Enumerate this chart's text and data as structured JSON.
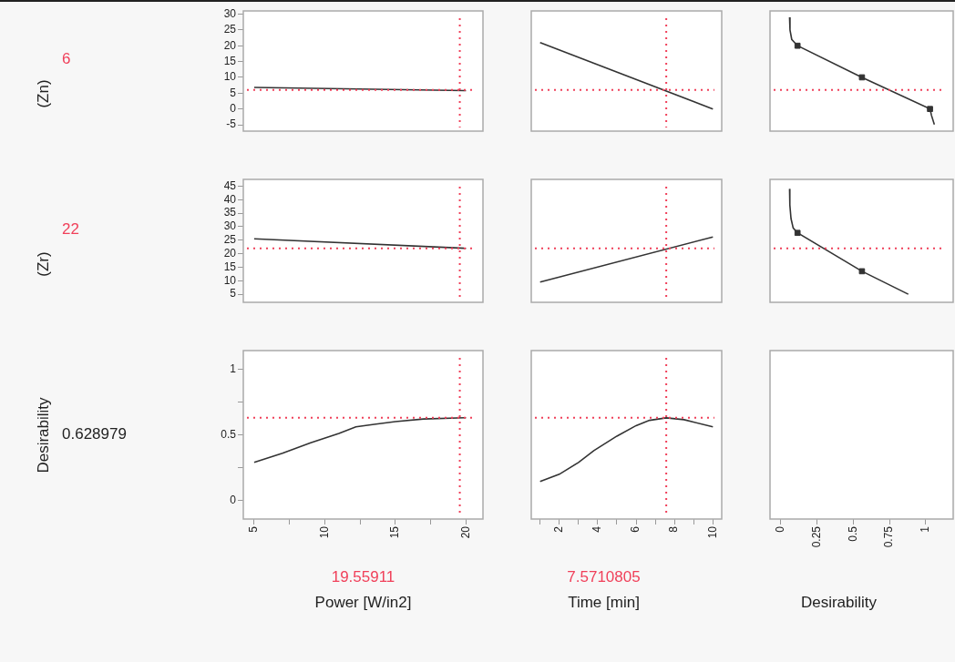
{
  "chart_data": [
    {
      "type": "line",
      "ylabel": "(Zn)",
      "tick_labels": "y",
      "grid": false,
      "marker": "none",
      "xlim": [
        4.23,
        21.2
      ],
      "ylim": [
        -7,
        31
      ],
      "yticks": [
        -5,
        0,
        5,
        10,
        15,
        20,
        25,
        30
      ],
      "ref_lines": [
        {
          "axis": "y",
          "value": 6,
          "label": "6",
          "color": "#f0405a",
          "line_style": "dotted"
        },
        {
          "axis": "x",
          "value": 19.55911,
          "color": "#f0405a",
          "line_style": "dotted"
        }
      ],
      "x": [
        5,
        20
      ],
      "series": [
        {
          "color": "#333333",
          "values": [
            6.8,
            5.8
          ]
        }
      ]
    },
    {
      "type": "line",
      "tick_labels": false,
      "grid": false,
      "marker": "none",
      "xlim": [
        0.54,
        10.46
      ],
      "ylim": [
        -7,
        31
      ],
      "ref_lines": [
        {
          "axis": "y",
          "value": 6,
          "color": "#f0405a",
          "line_style": "dotted"
        },
        {
          "axis": "x",
          "value": 7.5710805,
          "color": "#f0405a",
          "line_style": "dotted"
        }
      ],
      "x": [
        1,
        10
      ],
      "series": [
        {
          "color": "#333333",
          "values": [
            21,
            0
          ]
        }
      ]
    },
    {
      "type": "line",
      "tick_labels": false,
      "grid": false,
      "marker": "none",
      "xlim": [
        -0.075,
        1.19
      ],
      "ylim": [
        -7,
        31
      ],
      "ref_lines": [
        {
          "axis": "y",
          "value": 6,
          "color": "#f0405a",
          "line_style": "dotted"
        }
      ],
      "series": [
        {
          "color": "#333333",
          "x": [
            0.06,
            0.063,
            0.075,
            0.115,
            0.56,
            1.03,
            1.04,
            1.06
          ],
          "values": [
            29,
            25,
            22,
            20,
            10,
            0,
            -2,
            -4.9
          ]
        },
        {
          "type": "scatter",
          "marker": "square",
          "color": "#333333",
          "x": [
            0.115,
            0.56,
            1.03
          ],
          "values": [
            20,
            10,
            0
          ]
        }
      ]
    },
    {
      "type": "line",
      "ylabel": "(Zr)",
      "tick_labels": "y",
      "grid": false,
      "marker": "none",
      "xlim": [
        4.23,
        21.2
      ],
      "ylim": [
        2,
        47.5
      ],
      "yticks": [
        5,
        10,
        15,
        20,
        25,
        30,
        35,
        40,
        45
      ],
      "ref_lines": [
        {
          "axis": "y",
          "value": 22,
          "label": "22",
          "color": "#f0405a",
          "line_style": "dotted"
        },
        {
          "axis": "x",
          "value": 19.55911,
          "color": "#f0405a",
          "line_style": "dotted"
        }
      ],
      "x": [
        5,
        20
      ],
      "series": [
        {
          "color": "#333333",
          "values": [
            25.5,
            22
          ]
        }
      ]
    },
    {
      "type": "line",
      "tick_labels": false,
      "grid": false,
      "marker": "none",
      "xlim": [
        0.54,
        10.46
      ],
      "ylim": [
        2,
        47.5
      ],
      "ref_lines": [
        {
          "axis": "y",
          "value": 22,
          "color": "#f0405a",
          "line_style": "dotted"
        },
        {
          "axis": "x",
          "value": 7.5710805,
          "color": "#f0405a",
          "line_style": "dotted"
        }
      ],
      "x": [
        1,
        10
      ],
      "series": [
        {
          "color": "#333333",
          "values": [
            9.5,
            26.2
          ]
        }
      ]
    },
    {
      "type": "line",
      "tick_labels": false,
      "grid": false,
      "marker": "none",
      "xlim": [
        -0.075,
        1.19
      ],
      "ylim": [
        2,
        47.5
      ],
      "ref_lines": [
        {
          "axis": "y",
          "value": 22,
          "color": "#f0405a",
          "line_style": "dotted"
        }
      ],
      "series": [
        {
          "color": "#333333",
          "x": [
            0.06,
            0.062,
            0.07,
            0.085,
            0.115,
            0.56,
            0.88
          ],
          "values": [
            44,
            38,
            33,
            29.5,
            27.7,
            13.5,
            5
          ]
        },
        {
          "type": "scatter",
          "marker": "square",
          "color": "#333333",
          "x": [
            0.115,
            0.56
          ],
          "values": [
            27.7,
            13.5
          ]
        }
      ]
    },
    {
      "type": "line",
      "ylabel": "Desirability",
      "xlabel": "Power [W/in2]",
      "annotations": [
        "0.628979"
      ],
      "grid": false,
      "marker": "none",
      "xlim": [
        4.23,
        21.2
      ],
      "xticks": [
        5,
        {
          "value": 7.5,
          "label": null
        },
        10,
        {
          "value": 12.5,
          "label": null
        },
        15,
        {
          "value": 17.5,
          "label": null
        },
        20
      ],
      "ylim": [
        -0.14,
        1.14
      ],
      "yticks": [
        0,
        {
          "value": 0.25,
          "label": null
        },
        0.5,
        {
          "value": 0.75,
          "label": null
        },
        1
      ],
      "ref_lines": [
        {
          "axis": "y",
          "value": 0.628979,
          "color": "#f0405a",
          "line_style": "dotted"
        },
        {
          "axis": "x",
          "value": 19.55911,
          "label": "19.55911",
          "color": "#f0405a",
          "line_style": "dotted"
        }
      ],
      "x": [
        5,
        7,
        9,
        11,
        12.2,
        13.5,
        15,
        17,
        20
      ],
      "series": [
        {
          "color": "#333333",
          "values": [
            0.29,
            0.36,
            0.44,
            0.51,
            0.56,
            0.58,
            0.6,
            0.62,
            0.63
          ]
        }
      ]
    },
    {
      "type": "line",
      "xlabel": "Time [min]",
      "tick_labels": "x",
      "grid": false,
      "marker": "none",
      "xlim": [
        0.54,
        10.46
      ],
      "xticks": [
        {
          "value": 1,
          "label": null
        },
        2,
        {
          "value": 3,
          "label": null
        },
        4,
        {
          "value": 5,
          "label": null
        },
        6,
        {
          "value": 7,
          "label": null
        },
        8,
        {
          "value": 9,
          "label": null
        },
        10
      ],
      "ylim": [
        -0.14,
        1.14
      ],
      "ref_lines": [
        {
          "axis": "y",
          "value": 0.628979,
          "color": "#f0405a",
          "line_style": "dotted"
        },
        {
          "axis": "x",
          "value": 7.5710805,
          "label": "7.5710805",
          "color": "#f0405a",
          "line_style": "dotted"
        }
      ],
      "x": [
        1,
        2,
        3,
        3.8,
        5,
        6,
        6.7,
        7.57,
        8.5,
        10
      ],
      "series": [
        {
          "color": "#333333",
          "values": [
            0.145,
            0.2,
            0.29,
            0.38,
            0.49,
            0.57,
            0.61,
            0.629,
            0.615,
            0.56
          ]
        }
      ]
    },
    {
      "type": "line",
      "xlabel": "Desirability",
      "tick_labels": "x",
      "grid": false,
      "xlim": [
        -0.075,
        1.19
      ],
      "xticks": [
        0,
        0.25,
        0.5,
        0.75,
        1
      ],
      "ylim": [
        -0.14,
        1.14
      ]
    }
  ]
}
